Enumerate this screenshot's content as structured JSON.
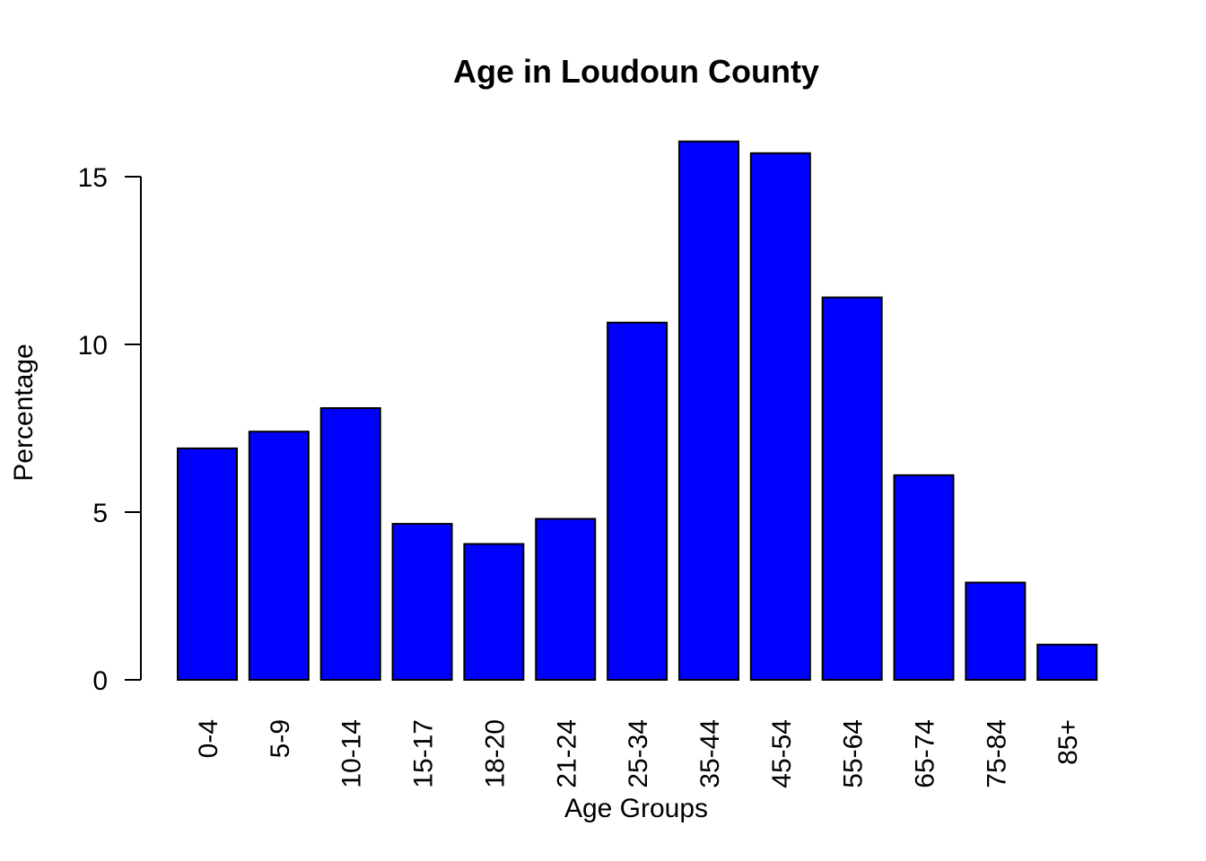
{
  "chart_data": {
    "type": "bar",
    "title": "Age in Loudoun County",
    "xlabel": "Age Groups",
    "ylabel": "Percentage",
    "categories": [
      "0-4",
      "5-9",
      "10-14",
      "15-17",
      "18-20",
      "21-24",
      "25-34",
      "35-44",
      "45-54",
      "55-64",
      "65-74",
      "75-84",
      "85+"
    ],
    "values": [
      6.9,
      7.4,
      8.1,
      4.65,
      4.05,
      4.8,
      10.65,
      16.05,
      15.7,
      11.4,
      6.1,
      2.9,
      1.05
    ],
    "ylim": [
      0,
      16.05
    ],
    "yticks": [
      "0",
      "5",
      "10",
      "15"
    ],
    "grid": false,
    "legend": "none",
    "bar_color": "#0000ff",
    "border_color": "#000000"
  }
}
